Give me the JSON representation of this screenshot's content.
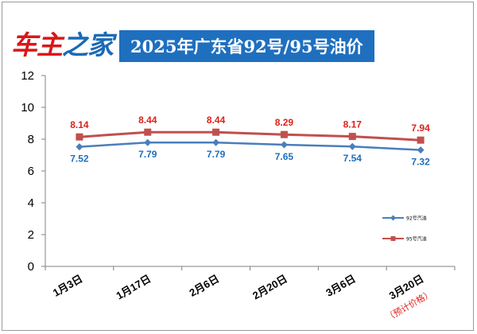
{
  "header": {
    "logo_part1": "车主",
    "logo_part2": "之家",
    "title": "2025年广东省92号/95号油价"
  },
  "colors": {
    "series_92": "#4a7ebb",
    "series_95": "#c0504d",
    "label_92": "#1f6fbf",
    "label_95": "#e0201a",
    "banner": "#1f6fbf"
  },
  "chart_data": {
    "type": "line",
    "title": "2025年广东省92号/95号油价",
    "categories": [
      "1月3日",
      "1月17日",
      "2月6日",
      "2月20日",
      "3月6日",
      "3月20日"
    ],
    "category_notes": [
      "",
      "",
      "",
      "",
      "",
      "（预计价格）"
    ],
    "y_ticks": [
      "0",
      "2",
      "4",
      "6",
      "8",
      "10",
      "12"
    ],
    "ylim": [
      0,
      12
    ],
    "grid": false,
    "legend_position": "right",
    "series": [
      {
        "name": "92号汽油",
        "marker": "diamond",
        "values": [
          7.52,
          7.79,
          7.79,
          7.65,
          7.54,
          7.32
        ],
        "labels": [
          "7.52",
          "7.79",
          "7.79",
          "7.65",
          "7.54",
          "7.32"
        ]
      },
      {
        "name": "95号汽油",
        "marker": "square",
        "values": [
          8.14,
          8.44,
          8.44,
          8.29,
          8.17,
          7.94
        ],
        "labels": [
          "8.14",
          "8.44",
          "8.44",
          "8.29",
          "8.17",
          "7.94"
        ]
      }
    ]
  }
}
